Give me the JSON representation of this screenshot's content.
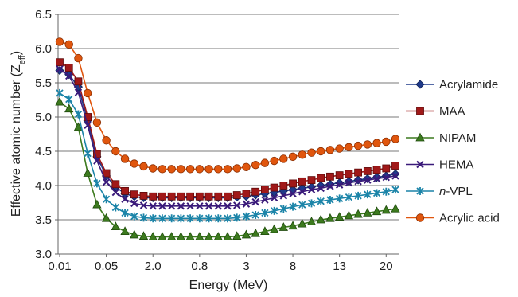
{
  "chart_data": {
    "type": "line",
    "xlabel": "Energy (MeV)",
    "ylabel_main": "Effective atomic number (Z",
    "ylabel_sub": "eff",
    "ylabel_close": ")",
    "ylim": [
      3.0,
      6.5
    ],
    "yticks": [
      "3.0",
      "3.5",
      "4.0",
      "4.5",
      "5.0",
      "5.5",
      "6.0",
      "6.5"
    ],
    "ytick_values": [
      3.0,
      3.5,
      4.0,
      4.5,
      5.0,
      5.5,
      6.0,
      6.5
    ],
    "xtick_labels": [
      "0.01",
      "0.05",
      "2.0",
      "0.8",
      "3",
      "8",
      "13",
      "20"
    ],
    "xtick_indices": [
      0,
      5,
      10,
      15,
      20,
      25,
      30,
      35
    ],
    "grid": "horizontal",
    "legend_position": "right",
    "series": [
      {
        "name": "Acrylamide",
        "color": "#1f3a8a",
        "marker": "diamond",
        "values": [
          5.68,
          5.62,
          5.44,
          4.95,
          4.42,
          4.14,
          3.98,
          3.88,
          3.84,
          3.82,
          3.82,
          3.82,
          3.82,
          3.82,
          3.82,
          3.82,
          3.82,
          3.82,
          3.82,
          3.83,
          3.84,
          3.86,
          3.88,
          3.9,
          3.92,
          3.94,
          3.96,
          3.98,
          4.0,
          4.02,
          4.04,
          4.06,
          4.08,
          4.1,
          4.12,
          4.14,
          4.17
        ]
      },
      {
        "name": "MAA",
        "color": "#a01818",
        "marker": "square",
        "values": [
          5.8,
          5.72,
          5.52,
          5.0,
          4.46,
          4.18,
          4.02,
          3.92,
          3.87,
          3.85,
          3.84,
          3.84,
          3.84,
          3.84,
          3.84,
          3.84,
          3.84,
          3.84,
          3.84,
          3.86,
          3.88,
          3.91,
          3.94,
          3.97,
          4.0,
          4.03,
          4.06,
          4.08,
          4.11,
          4.13,
          4.15,
          4.17,
          4.19,
          4.21,
          4.23,
          4.25,
          4.29
        ]
      },
      {
        "name": "NIPAM",
        "color": "#3c7a1e",
        "marker": "triangle",
        "values": [
          5.22,
          5.12,
          4.85,
          4.18,
          3.72,
          3.52,
          3.4,
          3.33,
          3.28,
          3.26,
          3.25,
          3.25,
          3.25,
          3.25,
          3.25,
          3.25,
          3.25,
          3.25,
          3.25,
          3.26,
          3.28,
          3.3,
          3.33,
          3.36,
          3.39,
          3.41,
          3.44,
          3.47,
          3.5,
          3.52,
          3.54,
          3.56,
          3.58,
          3.6,
          3.62,
          3.64,
          3.66
        ]
      },
      {
        "name": "HEMA",
        "color": "#3a1a7a",
        "marker": "x",
        "values": [
          5.7,
          5.6,
          5.36,
          4.88,
          4.36,
          4.05,
          3.9,
          3.8,
          3.74,
          3.71,
          3.7,
          3.7,
          3.7,
          3.7,
          3.7,
          3.7,
          3.7,
          3.7,
          3.7,
          3.71,
          3.73,
          3.76,
          3.79,
          3.82,
          3.85,
          3.88,
          3.91,
          3.94,
          3.96,
          3.99,
          4.01,
          4.04,
          4.06,
          4.08,
          4.1,
          4.12,
          4.14
        ]
      },
      {
        "name": "n-VPL",
        "name_prefix": "n",
        "name_suffix": "-VPL",
        "color": "#1b84a8",
        "marker": "asterisk",
        "values": [
          5.35,
          5.26,
          5.04,
          4.47,
          4.03,
          3.8,
          3.68,
          3.6,
          3.55,
          3.53,
          3.52,
          3.52,
          3.52,
          3.52,
          3.52,
          3.52,
          3.52,
          3.52,
          3.52,
          3.53,
          3.55,
          3.57,
          3.6,
          3.63,
          3.66,
          3.69,
          3.72,
          3.74,
          3.77,
          3.79,
          3.81,
          3.83,
          3.85,
          3.87,
          3.89,
          3.91,
          3.94
        ]
      },
      {
        "name": "Acrylic acid",
        "color": "#e0560e",
        "marker": "circle",
        "values": [
          6.1,
          6.06,
          5.86,
          5.35,
          4.92,
          4.66,
          4.5,
          4.39,
          4.32,
          4.28,
          4.25,
          4.24,
          4.24,
          4.24,
          4.24,
          4.24,
          4.24,
          4.24,
          4.24,
          4.25,
          4.27,
          4.3,
          4.33,
          4.36,
          4.39,
          4.42,
          4.45,
          4.48,
          4.5,
          4.52,
          4.54,
          4.56,
          4.58,
          4.6,
          4.62,
          4.64,
          4.68
        ]
      }
    ]
  }
}
